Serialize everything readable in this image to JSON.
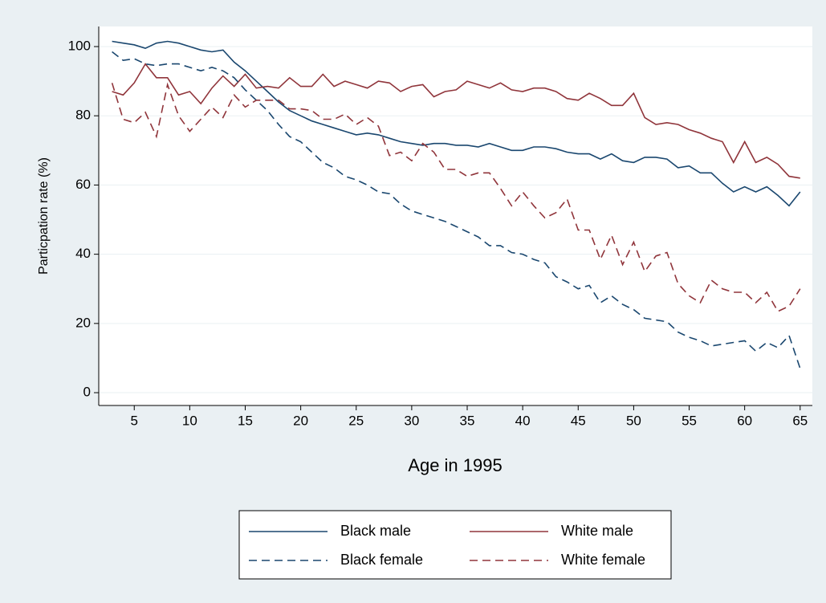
{
  "chart_data": {
    "type": "line",
    "x_label": "Age in 1995",
    "y_label": "Particpation rate (%)",
    "x": [
      3,
      4,
      5,
      6,
      7,
      8,
      9,
      10,
      11,
      12,
      13,
      14,
      15,
      16,
      17,
      18,
      19,
      20,
      21,
      22,
      23,
      24,
      25,
      26,
      27,
      28,
      29,
      30,
      31,
      32,
      33,
      34,
      35,
      36,
      37,
      38,
      39,
      40,
      41,
      42,
      43,
      44,
      45,
      46,
      47,
      48,
      49,
      50,
      51,
      52,
      53,
      54,
      55,
      56,
      57,
      58,
      59,
      60,
      61,
      62,
      63,
      64,
      65
    ],
    "xlim": [
      1.8,
      66.1
    ],
    "xticks": [
      5,
      10,
      15,
      20,
      25,
      30,
      35,
      40,
      45,
      50,
      55,
      60,
      65
    ],
    "ylim": [
      -3.7,
      105.8
    ],
    "yticks": [
      0,
      20,
      40,
      60,
      80,
      100
    ],
    "grid": true,
    "series": [
      {
        "name": "Black male",
        "color": "#1a476f",
        "dash": false,
        "values": [
          101.5,
          101,
          100.5,
          99.5,
          101,
          101.5,
          101,
          100,
          99,
          98.5,
          99,
          95.5,
          93,
          90,
          87,
          84,
          81.5,
          80,
          78.5,
          77.5,
          76.5,
          75.5,
          74.5,
          75,
          74.5,
          73.5,
          72.5,
          72,
          71.5,
          72,
          72,
          71.5,
          71.5,
          71,
          72,
          71,
          70,
          70,
          71,
          71,
          70.5,
          69.5,
          69,
          69,
          67.5,
          69,
          67,
          66.5,
          68,
          68,
          67.5,
          65,
          65.5,
          63.5,
          63.5,
          60.5,
          58,
          59.5,
          58,
          59.5,
          57,
          54,
          58
        ]
      },
      {
        "name": "White male",
        "color": "#90353b",
        "dash": false,
        "values": [
          87,
          86,
          89.5,
          95,
          91,
          91,
          86,
          87,
          83.5,
          88,
          91.5,
          88.5,
          92,
          88,
          88.5,
          88,
          91,
          88.5,
          88.5,
          92,
          88.5,
          90,
          89,
          88,
          90,
          89.5,
          87,
          88.5,
          89,
          85.5,
          87,
          87.5,
          90,
          89,
          88,
          89.5,
          87.5,
          87,
          88,
          88,
          87,
          85,
          84.5,
          86.5,
          85,
          83,
          83,
          86.5,
          79.5,
          77.5,
          78,
          77.5,
          76,
          75,
          73.5,
          72.5,
          66.5,
          72.5,
          66.5,
          68,
          66,
          62.5,
          62
        ]
      },
      {
        "name": "Black female",
        "color": "#1a476f",
        "dash": true,
        "values": [
          98.5,
          96,
          96.5,
          95,
          94.5,
          95,
          95,
          94,
          93,
          94,
          93,
          91,
          87.5,
          84.5,
          81.5,
          77.5,
          74,
          72.5,
          69.5,
          66.5,
          65,
          62.5,
          61.5,
          60,
          58,
          57.5,
          54.5,
          52.5,
          51.5,
          50.5,
          49.5,
          48,
          46.5,
          45,
          42.5,
          42.5,
          40.5,
          40,
          38.5,
          37.5,
          33.5,
          32,
          30,
          31,
          26,
          28,
          25.5,
          24,
          21.5,
          21,
          20.5,
          17.5,
          16,
          15,
          13.5,
          14,
          14.5,
          15,
          12,
          14.5,
          13,
          16.5,
          7
        ]
      },
      {
        "name": "White female",
        "color": "#90353b",
        "dash": true,
        "values": [
          89.5,
          79,
          78,
          81,
          74,
          89,
          80,
          75.5,
          79,
          82.5,
          79.5,
          86,
          82.5,
          84.5,
          84.5,
          84.5,
          82,
          82,
          81.5,
          79,
          79,
          80.5,
          77.5,
          79.5,
          77,
          68.5,
          69.5,
          67,
          72,
          69.5,
          64.5,
          64.5,
          62.5,
          63.5,
          63.5,
          59,
          54,
          58,
          54,
          50.5,
          52,
          56,
          47,
          47,
          38.5,
          45.5,
          37,
          43.5,
          35,
          39.5,
          40.5,
          31.5,
          28,
          26,
          32.5,
          30,
          29,
          29,
          26,
          29,
          23.5,
          25,
          30
        ]
      }
    ]
  }
}
